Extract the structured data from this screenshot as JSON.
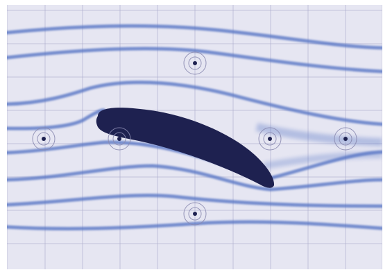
{
  "scene": {
    "background_color": "#e6e6f2",
    "grid_color": "#a7a7c8",
    "streamline_color": "#5573c4",
    "airfoil_color": "#1e2150",
    "probe_ring_color": "#8a8ab0",
    "probe_dot_color": "#1e2150",
    "grid_visible": true,
    "streamline_count": 8,
    "probe_count": 6
  }
}
